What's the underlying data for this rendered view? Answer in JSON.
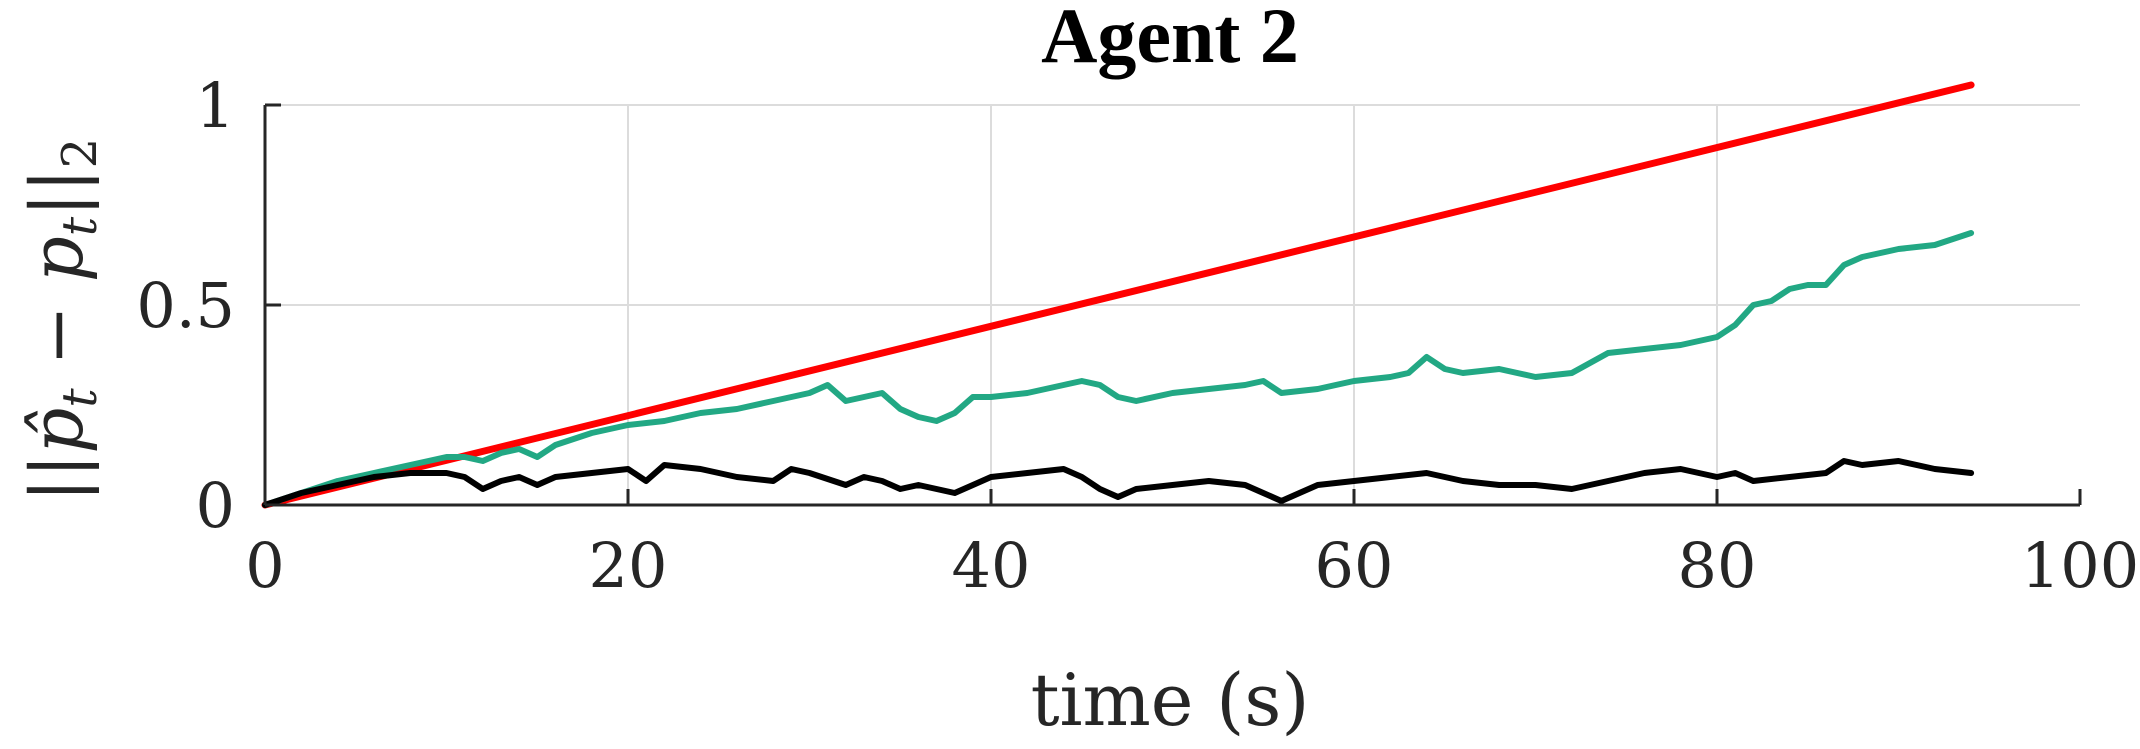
{
  "chart_data": {
    "type": "line",
    "title": "Agent 2",
    "xlabel": "time (s)",
    "ylabel": {
      "open": "||",
      "hat_var": "p̂",
      "sub1": "t",
      "minus": " − ",
      "var2": "p",
      "sub2": "t",
      "close": "||",
      "sub3": "2"
    },
    "xlim": [
      0,
      100
    ],
    "ylim": [
      0,
      1
    ],
    "xticks": [
      "0",
      "20",
      "40",
      "60",
      "80",
      "100"
    ],
    "yticks": [
      "0",
      "0.5",
      "1"
    ],
    "grid": true,
    "series": [
      {
        "color": "#ff0000",
        "x": [
          0,
          94
        ],
        "y": [
          0,
          1.05
        ]
      },
      {
        "color": "#22a884",
        "x": [
          0,
          2,
          4,
          6,
          8,
          9,
          10,
          11,
          12,
          13,
          14,
          15,
          16,
          18,
          20,
          22,
          24,
          26,
          28,
          30,
          31,
          32,
          33,
          34,
          35,
          36,
          37,
          38,
          39,
          40,
          42,
          44,
          45,
          46,
          47,
          48,
          50,
          52,
          54,
          55,
          56,
          58,
          60,
          62,
          63,
          64,
          65,
          66,
          68,
          70,
          72,
          74,
          76,
          78,
          80,
          81,
          82,
          83,
          84,
          85,
          86,
          87,
          88,
          90,
          92,
          94
        ],
        "y": [
          0,
          0.03,
          0.06,
          0.08,
          0.1,
          0.11,
          0.12,
          0.12,
          0.11,
          0.13,
          0.14,
          0.12,
          0.15,
          0.18,
          0.2,
          0.21,
          0.23,
          0.24,
          0.26,
          0.28,
          0.3,
          0.26,
          0.27,
          0.28,
          0.24,
          0.22,
          0.21,
          0.23,
          0.27,
          0.27,
          0.28,
          0.3,
          0.31,
          0.3,
          0.27,
          0.26,
          0.28,
          0.29,
          0.3,
          0.31,
          0.28,
          0.29,
          0.31,
          0.32,
          0.33,
          0.37,
          0.34,
          0.33,
          0.34,
          0.32,
          0.33,
          0.38,
          0.39,
          0.4,
          0.42,
          0.45,
          0.5,
          0.51,
          0.54,
          0.55,
          0.55,
          0.6,
          0.62,
          0.64,
          0.65,
          0.68
        ]
      },
      {
        "color": "#000000",
        "x": [
          0,
          2,
          4,
          6,
          8,
          10,
          11,
          12,
          13,
          14,
          15,
          16,
          18,
          20,
          21,
          22,
          24,
          25,
          26,
          28,
          29,
          30,
          32,
          33,
          34,
          35,
          36,
          38,
          39,
          40,
          42,
          44,
          45,
          46,
          47,
          48,
          50,
          52,
          54,
          55,
          56,
          57,
          58,
          60,
          62,
          64,
          66,
          68,
          70,
          72,
          74,
          76,
          78,
          80,
          81,
          82,
          84,
          86,
          87,
          88,
          90,
          92,
          94
        ],
        "y": [
          0,
          0.03,
          0.05,
          0.07,
          0.08,
          0.08,
          0.07,
          0.04,
          0.06,
          0.07,
          0.05,
          0.07,
          0.08,
          0.09,
          0.06,
          0.1,
          0.09,
          0.08,
          0.07,
          0.06,
          0.09,
          0.08,
          0.05,
          0.07,
          0.06,
          0.04,
          0.05,
          0.03,
          0.05,
          0.07,
          0.08,
          0.09,
          0.07,
          0.04,
          0.02,
          0.04,
          0.05,
          0.06,
          0.05,
          0.03,
          0.01,
          0.03,
          0.05,
          0.06,
          0.07,
          0.08,
          0.06,
          0.05,
          0.05,
          0.04,
          0.06,
          0.08,
          0.09,
          0.07,
          0.08,
          0.06,
          0.07,
          0.08,
          0.11,
          0.1,
          0.11,
          0.09,
          0.08
        ]
      }
    ]
  }
}
